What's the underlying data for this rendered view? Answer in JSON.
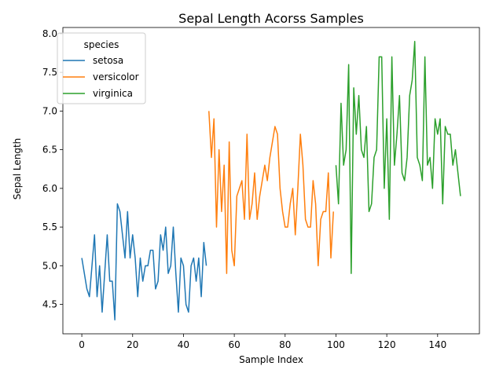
{
  "chart_data": {
    "type": "line",
    "title": "Sepal Length Acorss Samples",
    "xlabel": "Sample Index",
    "ylabel": "Sepal Length",
    "xlim": [
      -7.45,
      156.45
    ],
    "ylim": [
      4.12,
      8.08
    ],
    "xticks": [
      0,
      20,
      40,
      60,
      80,
      100,
      120,
      140
    ],
    "yticks": [
      4.5,
      5.0,
      5.5,
      6.0,
      6.5,
      7.0,
      7.5,
      8.0
    ],
    "xtick_labels": [
      "0",
      "20",
      "40",
      "60",
      "80",
      "100",
      "120",
      "140"
    ],
    "ytick_labels": [
      "4.5",
      "5.0",
      "5.5",
      "6.0",
      "6.5",
      "7.0",
      "7.5",
      "8.0"
    ],
    "grid": false,
    "legend": {
      "title": "species",
      "placement": "top-left"
    },
    "series": [
      {
        "name": "setosa",
        "color": "#1f77b4",
        "x_start": 0,
        "values": [
          5.1,
          4.9,
          4.7,
          4.6,
          5.0,
          5.4,
          4.6,
          5.0,
          4.4,
          4.9,
          5.4,
          4.8,
          4.8,
          4.3,
          5.8,
          5.7,
          5.4,
          5.1,
          5.7,
          5.1,
          5.4,
          5.1,
          4.6,
          5.1,
          4.8,
          5.0,
          5.0,
          5.2,
          5.2,
          4.7,
          4.8,
          5.4,
          5.2,
          5.5,
          4.9,
          5.0,
          5.5,
          4.9,
          4.4,
          5.1,
          5.0,
          4.5,
          4.4,
          5.0,
          5.1,
          4.8,
          5.1,
          4.6,
          5.3,
          5.0
        ]
      },
      {
        "name": "versicolor",
        "color": "#ff7f0e",
        "x_start": 50,
        "values": [
          7.0,
          6.4,
          6.9,
          5.5,
          6.5,
          5.7,
          6.3,
          4.9,
          6.6,
          5.2,
          5.0,
          5.9,
          6.0,
          6.1,
          5.6,
          6.7,
          5.6,
          5.8,
          6.2,
          5.6,
          5.9,
          6.1,
          6.3,
          6.1,
          6.4,
          6.6,
          6.8,
          6.7,
          6.0,
          5.7,
          5.5,
          5.5,
          5.8,
          6.0,
          5.4,
          6.0,
          6.7,
          6.3,
          5.6,
          5.5,
          5.5,
          6.1,
          5.8,
          5.0,
          5.6,
          5.7,
          5.7,
          6.2,
          5.1,
          5.7
        ]
      },
      {
        "name": "virginica",
        "color": "#2ca02c",
        "x_start": 100,
        "values": [
          6.3,
          5.8,
          7.1,
          6.3,
          6.5,
          7.6,
          4.9,
          7.3,
          6.7,
          7.2,
          6.5,
          6.4,
          6.8,
          5.7,
          5.8,
          6.4,
          6.5,
          7.7,
          7.7,
          6.0,
          6.9,
          5.6,
          7.7,
          6.3,
          6.7,
          7.2,
          6.2,
          6.1,
          6.4,
          7.2,
          7.4,
          7.9,
          6.4,
          6.3,
          6.1,
          7.7,
          6.3,
          6.4,
          6.0,
          6.9,
          6.7,
          6.9,
          5.8,
          6.8,
          6.7,
          6.7,
          6.3,
          6.5,
          6.2,
          5.9
        ]
      }
    ]
  }
}
